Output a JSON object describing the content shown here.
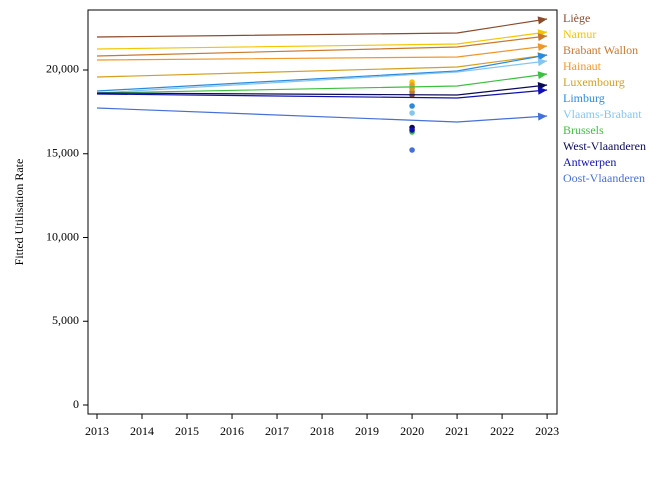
{
  "chart_data": {
    "type": "line",
    "y_label": "Fitted Utilisation Rate",
    "x": [
      2013,
      2021,
      2023
    ],
    "point_x": 2020,
    "series": [
      {
        "name": "Liège",
        "color": "#8b4a2b",
        "values": [
          21970,
          22209,
          23045
        ],
        "point": 18507
      },
      {
        "name": "Namur",
        "color": "#f2c500",
        "values": [
          21254,
          21552,
          22269
        ],
        "point": 19284
      },
      {
        "name": "Brabant Wallon",
        "color": "#c8782a",
        "values": [
          20836,
          21373,
          22030
        ],
        "point": 18700
      },
      {
        "name": "Hainaut",
        "color": "#f0962a",
        "values": [
          20597,
          20776,
          21433
        ],
        "point": 19104
      },
      {
        "name": "Luxembourg",
        "color": "#d4a020",
        "values": [
          19582,
          20179,
          20896
        ],
        "point": 18900
      },
      {
        "name": "Limburg",
        "color": "#2a8ae0",
        "values": [
          18746,
          19940,
          20896
        ],
        "point": 17851
      },
      {
        "name": "Vlaams-Brabant",
        "color": "#84c6f0",
        "values": [
          18627,
          19881,
          20537
        ],
        "point": 17433
      },
      {
        "name": "Brussels",
        "color": "#3cc040",
        "values": [
          18627,
          19045,
          19761
        ],
        "point": 16299
      },
      {
        "name": "West-Vlaanderen",
        "color": "#0a0a5a",
        "values": [
          18627,
          18507,
          19104
        ],
        "point": 16567
      },
      {
        "name": "Antwerpen",
        "color": "#1010b0",
        "values": [
          18567,
          18328,
          18806
        ],
        "point": 16418
      },
      {
        "name": "Oost-Vlaanderen",
        "color": "#4670d8",
        "values": [
          17731,
          16896,
          17254
        ],
        "point": 15224
      }
    ],
    "xlim": [
      2012.8,
      2023.22
    ],
    "xticks": [
      2013,
      2014,
      2015,
      2016,
      2017,
      2018,
      2019,
      2020,
      2021,
      2022,
      2023
    ],
    "ylim": [
      -537,
      23582
    ],
    "yticks": [
      0,
      {
        "value": 5000,
        "label": "5,000"
      },
      {
        "value": 10000,
        "label": "10,000"
      },
      {
        "value": 15000,
        "label": "15,000"
      },
      {
        "value": 20000,
        "label": "20,000"
      }
    ],
    "legend": "right"
  }
}
